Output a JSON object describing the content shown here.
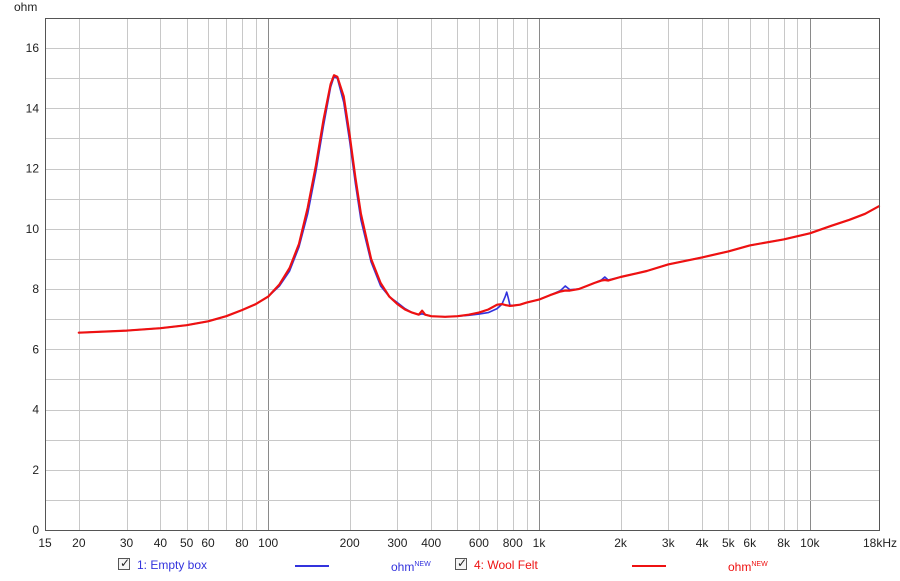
{
  "chart_data": {
    "type": "line",
    "y_unit_label": "ohm",
    "x_scale": "log",
    "xlim": [
      15,
      18000
    ],
    "ylim": [
      0,
      17
    ],
    "x_ticks": [
      {
        "value": 15,
        "label": "15"
      },
      {
        "value": 20,
        "label": "20"
      },
      {
        "value": 30,
        "label": "30"
      },
      {
        "value": 40,
        "label": "40"
      },
      {
        "value": 50,
        "label": "50"
      },
      {
        "value": 60,
        "label": "60"
      },
      {
        "value": 80,
        "label": "80"
      },
      {
        "value": 100,
        "label": "100"
      },
      {
        "value": 200,
        "label": "200"
      },
      {
        "value": 300,
        "label": "300"
      },
      {
        "value": 400,
        "label": "400"
      },
      {
        "value": 600,
        "label": "600"
      },
      {
        "value": 800,
        "label": "800"
      },
      {
        "value": 1000,
        "label": "1k"
      },
      {
        "value": 2000,
        "label": "2k"
      },
      {
        "value": 3000,
        "label": "3k"
      },
      {
        "value": 4000,
        "label": "4k"
      },
      {
        "value": 5000,
        "label": "5k"
      },
      {
        "value": 6000,
        "label": "6k"
      },
      {
        "value": 8000,
        "label": "8k"
      },
      {
        "value": 10000,
        "label": "10k"
      },
      {
        "value": 18000,
        "label": "18kHz"
      }
    ],
    "y_ticks": [
      0,
      2,
      4,
      6,
      8,
      10,
      12,
      14,
      16
    ],
    "grid": true,
    "series": [
      {
        "name": "1: Empty box",
        "unit": "ohm",
        "unit_tag": "NEW",
        "color": "#3333dd",
        "x": [
          20,
          30,
          40,
          50,
          60,
          70,
          80,
          90,
          100,
          110,
          120,
          130,
          140,
          150,
          160,
          170,
          175,
          180,
          190,
          200,
          210,
          220,
          240,
          260,
          280,
          300,
          320,
          340,
          360,
          370,
          380,
          400,
          450,
          500,
          550,
          600,
          650,
          700,
          730,
          750,
          760,
          770,
          780,
          800,
          850,
          900,
          1000,
          1100,
          1200,
          1250,
          1300,
          1400,
          1500,
          1600,
          1700,
          1750,
          1800,
          2000,
          2500,
          3000,
          4000,
          5000,
          6000,
          8000,
          10000,
          12000,
          14000,
          16000,
          18000
        ],
        "y": [
          6.55,
          6.62,
          6.7,
          6.8,
          6.93,
          7.1,
          7.3,
          7.5,
          7.75,
          8.1,
          8.6,
          9.4,
          10.5,
          11.9,
          13.4,
          14.7,
          15.05,
          15.0,
          14.2,
          12.9,
          11.5,
          10.3,
          8.9,
          8.1,
          7.75,
          7.55,
          7.35,
          7.22,
          7.15,
          7.18,
          7.15,
          7.1,
          7.08,
          7.1,
          7.13,
          7.17,
          7.22,
          7.35,
          7.5,
          7.75,
          7.9,
          7.7,
          7.48,
          7.45,
          7.48,
          7.55,
          7.65,
          7.8,
          7.95,
          8.1,
          7.98,
          8.0,
          8.1,
          8.2,
          8.3,
          8.4,
          8.3,
          8.4,
          8.6,
          8.82,
          9.05,
          9.25,
          9.45,
          9.65,
          9.85,
          10.1,
          10.3,
          10.5,
          10.75
        ]
      },
      {
        "name": "4: Wool Felt",
        "unit": "ohm",
        "unit_tag": "NEW",
        "color": "#ee1111",
        "x": [
          20,
          30,
          40,
          50,
          60,
          70,
          80,
          90,
          100,
          110,
          120,
          130,
          140,
          150,
          160,
          170,
          175,
          180,
          190,
          200,
          210,
          220,
          240,
          260,
          280,
          300,
          320,
          340,
          360,
          370,
          380,
          400,
          450,
          500,
          550,
          600,
          650,
          700,
          730,
          750,
          760,
          770,
          780,
          800,
          850,
          900,
          1000,
          1100,
          1200,
          1250,
          1300,
          1400,
          1500,
          1600,
          1700,
          1750,
          1800,
          2000,
          2500,
          3000,
          4000,
          5000,
          6000,
          8000,
          10000,
          12000,
          14000,
          16000,
          18000
        ],
        "y": [
          6.55,
          6.62,
          6.7,
          6.8,
          6.93,
          7.1,
          7.3,
          7.5,
          7.75,
          8.15,
          8.7,
          9.5,
          10.7,
          12.1,
          13.6,
          14.8,
          15.1,
          15.05,
          14.4,
          13.1,
          11.7,
          10.5,
          9.0,
          8.2,
          7.75,
          7.5,
          7.32,
          7.22,
          7.15,
          7.28,
          7.15,
          7.1,
          7.08,
          7.1,
          7.15,
          7.22,
          7.32,
          7.48,
          7.5,
          7.47,
          7.46,
          7.45,
          7.44,
          7.45,
          7.48,
          7.55,
          7.65,
          7.8,
          7.92,
          7.95,
          7.95,
          8.0,
          8.1,
          8.2,
          8.28,
          8.3,
          8.28,
          8.4,
          8.6,
          8.82,
          9.05,
          9.25,
          9.45,
          9.65,
          9.85,
          10.1,
          10.3,
          10.5,
          10.75
        ]
      }
    ]
  },
  "legend": [
    {
      "checked": true,
      "label": "1: Empty box",
      "unit": "ohm",
      "unit_tag": "NEW",
      "color": "#3333dd"
    },
    {
      "checked": true,
      "label": "4: Wool Felt",
      "unit": "ohm",
      "unit_tag": "NEW",
      "color": "#ee1111"
    }
  ],
  "colors": {
    "grid_minor": "#c8c8c8",
    "grid_major": "#8a8a8a",
    "frame": "#555555"
  }
}
